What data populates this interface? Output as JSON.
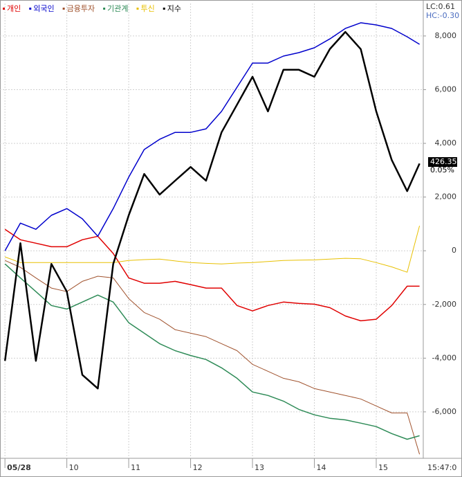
{
  "chart_data": {
    "type": "line",
    "x": [
      9.0,
      9.25,
      9.5,
      9.75,
      10.0,
      10.25,
      10.5,
      10.75,
      11.0,
      11.25,
      11.5,
      11.75,
      12.0,
      12.25,
      12.5,
      12.75,
      13.0,
      13.25,
      13.5,
      13.75,
      14.0,
      14.25,
      14.5,
      14.75,
      15.0,
      15.25,
      15.5,
      15.7
    ],
    "xlim": [
      8.92,
      15.76
    ],
    "xticks": [
      {
        "value": 9,
        "label": "05/28"
      },
      10,
      11,
      12,
      13,
      14,
      15
    ],
    "ylim": [
      -7730,
      9210
    ],
    "yticks": [
      {
        "value": 8000,
        "label": "8,000"
      },
      {
        "value": 6000,
        "label": "6,000"
      },
      {
        "value": 4000,
        "label": "4,000"
      },
      {
        "value": 2000,
        "label": "2,000"
      },
      0,
      {
        "value": -2000,
        "label": "-2,000"
      },
      {
        "value": -4000,
        "label": "-4,000"
      },
      {
        "value": -6000,
        "label": "-6,000"
      }
    ],
    "grid": true,
    "legend": "top-left",
    "series": [
      {
        "name": "개인",
        "color": "#e00000",
        "width": 1.5,
        "values": [
          800,
          410,
          280,
          150,
          150,
          410,
          540,
          -100,
          -1010,
          -1210,
          -1210,
          -1140,
          -1260,
          -1390,
          -1390,
          -2040,
          -2240,
          -2040,
          -1910,
          -1960,
          -1990,
          -2120,
          -2430,
          -2610,
          -2550,
          -2040,
          -1320,
          -1320
        ]
      },
      {
        "name": "외국인",
        "color": "#0000cc",
        "width": 1.5,
        "values": [
          0,
          1030,
          800,
          1320,
          1570,
          1190,
          540,
          1570,
          2740,
          3770,
          4150,
          4410,
          4410,
          4540,
          5190,
          6090,
          6990,
          6990,
          7250,
          7380,
          7560,
          7890,
          8280,
          8490,
          8410,
          8280,
          7970,
          7690
        ]
      },
      {
        "name": "금융투자",
        "color": "#a0522d",
        "width": 1,
        "values": [
          -360,
          -620,
          -1010,
          -1390,
          -1520,
          -1140,
          -950,
          -1010,
          -1780,
          -2300,
          -2550,
          -2940,
          -3070,
          -3200,
          -3460,
          -3720,
          -4230,
          -4490,
          -4750,
          -4880,
          -5130,
          -5260,
          -5390,
          -5520,
          -5780,
          -6040,
          -6040,
          -7580
        ]
      },
      {
        "name": "기관계",
        "color": "#2e8b57",
        "width": 1.5,
        "values": [
          -490,
          -1010,
          -1520,
          -2040,
          -2170,
          -1910,
          -1650,
          -1910,
          -2680,
          -3070,
          -3460,
          -3720,
          -3900,
          -4050,
          -4360,
          -4750,
          -5260,
          -5390,
          -5600,
          -5910,
          -6110,
          -6240,
          -6300,
          -6420,
          -6550,
          -6810,
          -7020,
          -6890
        ]
      },
      {
        "name": "투신",
        "color": "#e8c000",
        "width": 1,
        "values": [
          -230,
          -440,
          -440,
          -440,
          -440,
          -440,
          -440,
          -440,
          -360,
          -330,
          -310,
          -380,
          -440,
          -470,
          -490,
          -460,
          -440,
          -400,
          -360,
          -350,
          -340,
          -310,
          -280,
          -300,
          -440,
          -600,
          -800,
          930
        ]
      },
      {
        "name": "지수",
        "color": "#000000",
        "width": 2.5,
        "values": [
          -4100,
          280,
          -4100,
          -490,
          -1520,
          -4620,
          -5130,
          -490,
          1320,
          2860,
          2090,
          2610,
          3120,
          2610,
          4410,
          5440,
          6480,
          5190,
          6740,
          6740,
          6480,
          7510,
          8150,
          7510,
          5190,
          3380,
          2220,
          3250
        ]
      }
    ],
    "lc_label": "LC:0.61",
    "hc_label": "HC:-0.30",
    "last_value_label": "426.35",
    "change_label": "0.05%",
    "timestamp": "15:47:0"
  }
}
